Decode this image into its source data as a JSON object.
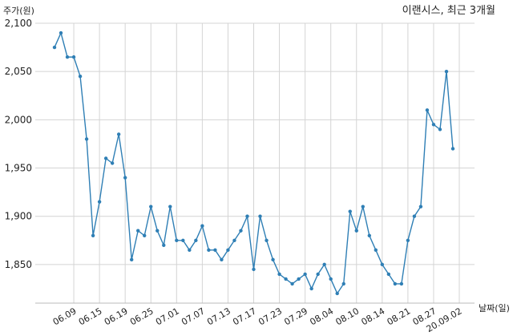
{
  "chart_data": {
    "type": "line",
    "title": "이랜시스, 최근 3개월",
    "ylabel": "주가(원)",
    "xlabel": "날짜(일)",
    "ylim": [
      1810,
      2100
    ],
    "yticks": [
      1850,
      1900,
      1950,
      2000,
      2050,
      2100
    ],
    "ytick_labels": [
      "1,850",
      "1,900",
      "1,950",
      "2,000",
      "2,050",
      "2,100"
    ],
    "grid": true,
    "line_color": "#2f7fb5",
    "x_tick_labels": [
      "06.09",
      "06.15",
      "06.19",
      "06.25",
      "07.01",
      "07.07",
      "07.13",
      "07.17",
      "07.23",
      "07.29",
      "08.04",
      "08.10",
      "08.14",
      "08.21",
      "08.27",
      "20.09.02"
    ],
    "x_tick_index": [
      3,
      7,
      11,
      15,
      19,
      23,
      27,
      31,
      35,
      39,
      43,
      47,
      51,
      55,
      59,
      63
    ],
    "series": [
      {
        "values": [
          2075,
          2090,
          2065,
          2065,
          2045,
          1980,
          1880,
          1915,
          1960,
          1955,
          1985,
          1940,
          1855,
          1885,
          1880,
          1910,
          1885,
          1870,
          1910,
          1875,
          1875,
          1865,
          1875,
          1890,
          1865,
          1865,
          1855,
          1865,
          1875,
          1885,
          1900,
          1845,
          1900,
          1875,
          1855,
          1840,
          1835,
          1830,
          1835,
          1840,
          1825,
          1840,
          1850,
          1835,
          1820,
          1830,
          1905,
          1885,
          1910,
          1880,
          1865,
          1850,
          1840,
          1830,
          1830,
          1875,
          1900,
          1910,
          2010,
          1995,
          1990,
          2050,
          1970
        ]
      }
    ]
  }
}
